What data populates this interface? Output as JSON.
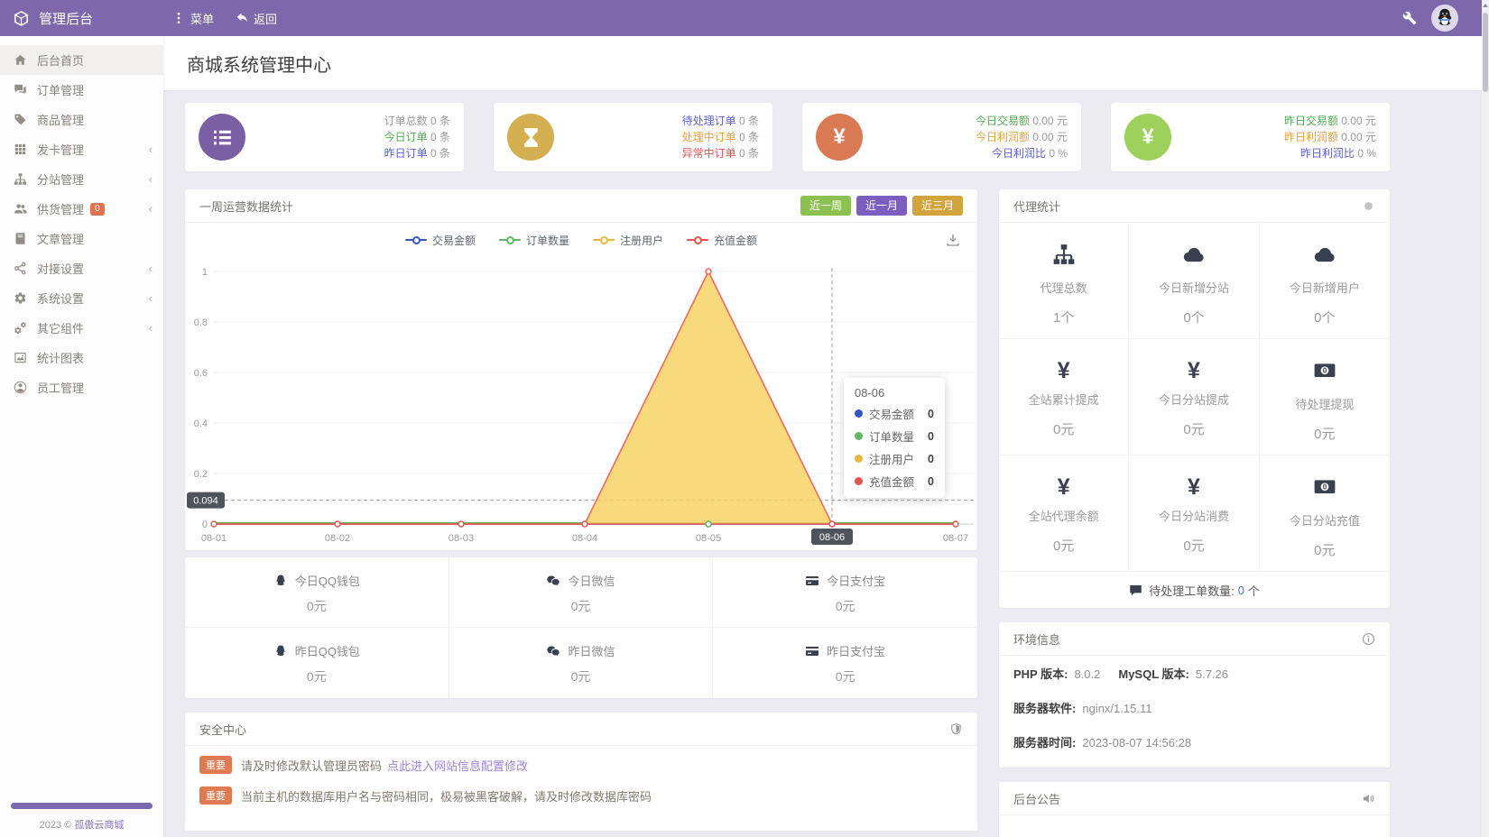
{
  "topbar": {
    "brand": "管理后台",
    "menu_label": "菜单",
    "back_label": "返回"
  },
  "sidebar": {
    "items": [
      {
        "key": "home",
        "label": "后台首页",
        "icon": "home",
        "active": true
      },
      {
        "key": "orders",
        "label": "订单管理",
        "icon": "comments"
      },
      {
        "key": "products",
        "label": "商品管理",
        "icon": "tag"
      },
      {
        "key": "cards",
        "label": "发卡管理",
        "icon": "grid",
        "chevron": true
      },
      {
        "key": "substations",
        "label": "分站管理",
        "icon": "sitemap",
        "chevron": true
      },
      {
        "key": "suppliers",
        "label": "供货管理",
        "icon": "users",
        "badge": "0",
        "chevron": true
      },
      {
        "key": "articles",
        "label": "文章管理",
        "icon": "book"
      },
      {
        "key": "integration",
        "label": "对接设置",
        "icon": "share",
        "chevron": true
      },
      {
        "key": "system",
        "label": "系统设置",
        "icon": "gear",
        "chevron": true
      },
      {
        "key": "components",
        "label": "其它组件",
        "icon": "cogs",
        "chevron": true
      },
      {
        "key": "charts",
        "label": "统计图表",
        "icon": "chart"
      },
      {
        "key": "staff",
        "label": "员工管理",
        "icon": "user"
      }
    ],
    "footer_year": "2023 ©",
    "footer_brand": "孤傲云商城"
  },
  "page": {
    "title": "商城系统管理中心"
  },
  "stat_cards": [
    {
      "icon": "list-ol",
      "bg": "#7b5fa5",
      "rows": [
        {
          "label": "订单总数",
          "color": "#9b9b9b",
          "value": "0",
          "unit": "条"
        },
        {
          "label": "今日订单",
          "color": "#53ae53",
          "value": "0",
          "unit": "条"
        },
        {
          "label": "昨日订单",
          "color": "#5a5fd8",
          "value": "0",
          "unit": "条"
        }
      ]
    },
    {
      "icon": "hourglass",
      "bg": "#d4af52",
      "rows": [
        {
          "label": "待处理订单",
          "color": "#5a5fd8",
          "value": "0",
          "unit": "条"
        },
        {
          "label": "处理中订单",
          "color": "#e5a23c",
          "value": "0",
          "unit": "条"
        },
        {
          "label": "异常中订单",
          "color": "#e25252",
          "value": "0",
          "unit": "条"
        }
      ]
    },
    {
      "icon": "yen",
      "bg": "#d97a54",
      "rows": [
        {
          "label": "今日交易额",
          "color": "#53ae53",
          "value": "0.00",
          "unit": "元"
        },
        {
          "label": "今日利润额",
          "color": "#e5a23c",
          "value": "0.00",
          "unit": "元"
        },
        {
          "label": "今日利润比",
          "color": "#5a5fd8",
          "value": "0",
          "unit": "%"
        }
      ]
    },
    {
      "icon": "yen",
      "bg": "#9ed05c",
      "rows": [
        {
          "label": "昨日交易额",
          "color": "#53ae53",
          "value": "0.00",
          "unit": "元"
        },
        {
          "label": "昨日利润额",
          "color": "#e5a23c",
          "value": "0.00",
          "unit": "元"
        },
        {
          "label": "昨日利润比",
          "color": "#5a5fd8",
          "value": "0",
          "unit": "%"
        }
      ]
    }
  ],
  "chart_panel": {
    "title": "一周运营数据统计",
    "buttons": [
      {
        "label": "近一周",
        "bg": "#8cc152"
      },
      {
        "label": "近一月",
        "bg": "#7a5fc0"
      },
      {
        "label": "近三月",
        "bg": "#d2a53c"
      }
    ]
  },
  "chart_data": {
    "type": "line",
    "title": "一周运营数据统计",
    "x": [
      "08-01",
      "08-02",
      "08-03",
      "08-04",
      "08-05",
      "08-06",
      "08-07"
    ],
    "series": [
      {
        "name": "交易金额",
        "color": "#3455c8",
        "values": [
          0,
          0,
          0,
          0,
          0,
          0,
          0
        ]
      },
      {
        "name": "订单数量",
        "color": "#62b762",
        "values": [
          0,
          0,
          0,
          0,
          0,
          0,
          0
        ]
      },
      {
        "name": "注册用户",
        "color": "#e9b73e",
        "line_color": "#f0695f",
        "fill": "#f7d56a",
        "area": true,
        "values": [
          0,
          0,
          0,
          0,
          1,
          0,
          0
        ]
      },
      {
        "name": "充值金额",
        "color": "#e4544c",
        "values": [
          0,
          0,
          0,
          0,
          0,
          0,
          0
        ]
      }
    ],
    "ylim": [
      0,
      1
    ],
    "yticks": [
      "0",
      "0.2",
      "0.4",
      "0.6",
      "0.8",
      "1"
    ],
    "grid": true,
    "legend_position": "top-center",
    "crosshair": {
      "x_index": 5,
      "x_label": "08-06",
      "y_value": 0.094,
      "y_label": "0.094"
    },
    "tooltip": {
      "title": "08-06",
      "rows": [
        {
          "label": "交易金额",
          "value": "0"
        },
        {
          "label": "订单数量",
          "value": "0"
        },
        {
          "label": "注册用户",
          "value": "0"
        },
        {
          "label": "充值金额",
          "value": "0"
        }
      ]
    }
  },
  "wallet_grid": [
    [
      {
        "icon": "qq",
        "label": "今日QQ钱包",
        "value": "0元"
      },
      {
        "icon": "wechat",
        "label": "今日微信",
        "value": "0元"
      },
      {
        "icon": "card",
        "label": "今日支付宝",
        "value": "0元"
      }
    ],
    [
      {
        "icon": "qq",
        "label": "昨日QQ钱包",
        "value": "0元"
      },
      {
        "icon": "wechat",
        "label": "昨日微信",
        "value": "0元"
      },
      {
        "icon": "card",
        "label": "昨日支付宝",
        "value": "0元"
      }
    ]
  ],
  "security": {
    "title": "安全中心",
    "alerts": [
      {
        "badge": "重要",
        "text": "请及时修改默认管理员密码",
        "link": "点此进入网站信息配置修改"
      },
      {
        "badge": "重要",
        "text": "当前主机的数据库用户名与密码相同，极易被黑客破解，请及时修改数据库密码"
      }
    ]
  },
  "agent_panel": {
    "title": "代理统计",
    "cells": [
      {
        "icon": "sitemap",
        "label": "代理总数",
        "value": "1个"
      },
      {
        "icon": "cloud",
        "label": "今日新增分站",
        "value": "0个"
      },
      {
        "icon": "cloud",
        "label": "今日新增用户",
        "value": "0个"
      },
      {
        "icon": "yen",
        "label": "全站累计提成",
        "value": "0元"
      },
      {
        "icon": "yen",
        "label": "今日分站提成",
        "value": "0元"
      },
      {
        "icon": "money",
        "label": "待处理提现",
        "value": "0元"
      },
      {
        "icon": "yen",
        "label": "全站代理余额",
        "value": "0元"
      },
      {
        "icon": "yen",
        "label": "今日分站消费",
        "value": "0元"
      },
      {
        "icon": "money",
        "label": "今日分站充值",
        "value": "0元"
      }
    ],
    "footer": {
      "label": "待处理工单数量:",
      "value": "0",
      "unit": "个"
    }
  },
  "env_panel": {
    "title": "环境信息",
    "rows": [
      [
        {
          "label": "PHP 版本:",
          "value": "8.0.2"
        },
        {
          "label": "MySQL 版本:",
          "value": "5.7.26"
        }
      ],
      [
        {
          "label": "服务器软件:",
          "value": "nginx/1.15.11"
        }
      ],
      [
        {
          "label": "服务器时间:",
          "value": "2023-08-07 14:56:28"
        }
      ]
    ]
  },
  "notice_panel": {
    "title": "后台公告"
  }
}
